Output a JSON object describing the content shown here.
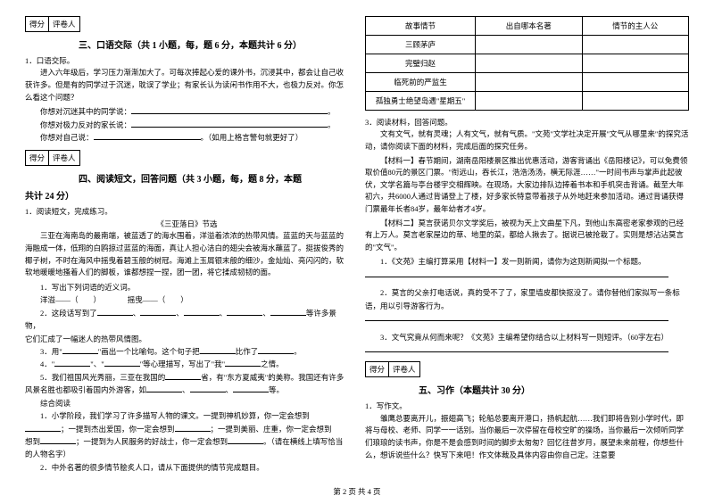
{
  "score_labels": {
    "score": "得分",
    "reviewer": "评卷人"
  },
  "sec3": {
    "title": "三、口语交际（共 1 小题，每，题 6 分，本题共计 6 分）",
    "q": "1．口语交际。",
    "intro": "进入六年级后，学习压力渐渐加大了。可每次捧起心爱的课外书，沉浸其中，都会让自己收获许多。但是有的同学过于沉迷，耽误了学业；有家长认为读闲书作用不大，也极力反对。你怎么看这个问题？",
    "l1p": "你想对沉迷其中的同学说：",
    "l2p": "你想对极力反对的家长说：",
    "l3p": "你想对自己说：",
    "l3s": "。（如用上格言警句就更好了）"
  },
  "sec4": {
    "title": "四、阅读短文，回答问题（共 3 小题，每，题 8 分，本题",
    "title2": "共计 24 分）",
    "q1": "1．阅读短文，完成练习。",
    "story_title": "《三亚落日》节选",
    "p1": "三亚在海南岛的最南端，被蓝透了的海水围着，洋溢着浓浓的热带风情。蓝蓝的天与蓝蓝的海融成一体，低翔的白鸥掠过蓝蓝的海面，真让人担心洁白的翅尖会被海水蘸蓝了。挺拔俊秀的椰子树，不时在海风中摇曳着碧玉般的树冠。海滩上玉屑银末般的细沙，金灿灿、亮闪闪的，软软地暖暖地搔着人们的脚板，谁都想捏一捏，团一团，将它揉成韧韧的面。",
    "t1": "1．写出下列词语的近义词。",
    "t1a": "洋溢——（　　）",
    "t1b": "摇曳——（　　）",
    "t2pre": "2．这段话写到了",
    "t2mid": "等许多景物，",
    "t2end": "它们汇成了一幅迷人的热带风情图。",
    "t3a": "3．用\"",
    "t3b": "\"画出一个比喻句。这个句子把",
    "t3c": "比作了",
    "t4a": "4．\"",
    "t4b": "\"、\"",
    "t4c": "\"等心理描写，写出了\"我\"",
    "t4d": "之情。",
    "t5a": "5．我们祖国风光秀丽，三亚在我国的",
    "t5b": "省，有\"东方夏威夷\"的美称。我国还有许多风景名胜也都吸引着国内外游客，如",
    "cx": "综合阅读",
    "c1": "1．小学阶段，我们学习了许多描写人物的课文。一提到神机妙算，你一定会想到",
    "c1a": "；一提到杰出爱国，你一定会想到",
    "c1b": "；一提到美丽、庄重，你一定会想到",
    "c1c": "；一提到为人民服务的好战士，你一定会想到",
    "c1d": "。（请在横线上填写恰当的人物名字）",
    "c2": "2．中外名著的很多情节脍炙人口，请从下面提供的情节完成题目。"
  },
  "table": {
    "h1": "故事情节",
    "h2": "出自哪本名著",
    "h3": "情节的主人公",
    "r1": "三顾茅庐",
    "r2": "完璧归赵",
    "r3": "临死前的严监生",
    "r4": "孤独勇士绝望岛遇\"星期五\""
  },
  "sec4b": {
    "q3": "3．阅读材料，回答问题。",
    "p1": "文有文气，就有灵魂；人有文气，就有气质。\"文苑\"文学社决定开展\"文气从哪里来\"的探究活动，请你阅读下面的材料，完成后面的探究任务。",
    "m1": "【材料一】春节期间，湖南岳阳楼景区推出优惠活动，游客背诵出《岳阳楼记》，可以免费领取价值80元的景区门票。\"衔远山，吞长江，浩浩汤汤，横无际涯……\"一时间书声与掌声此起彼伏，文学名篇与亭台楼宇交相辉映。在现场，大家边排队边捧着书本和手机突击背诵。截至大年初六，共6000人通过背诵登上了楼，好多家长特意带着孩子从外地赶来参加活动。通过背诵获得门票最年长者84岁，最年幼者才4岁。",
    "m2": "【材料二】莫言获诺贝尔文学奖后，被视为天上文曲星下凡，到他山东高密老家参观的已经有上万人。莫言老家屋边的草、地里的菜，都给人揪去了。据说已被抢栽了。实则是想沾沾莫言的\"文气\"。",
    "q3_1": "1．《文苑》主编打算采用【材料一】发一则新闻，请你为这则新闻拟一个标题。",
    "q3_2": "2．莫言的父亲打电话说，真的受不了了，家里墙皮都快抠没了。请你替他们家拟写一条标语，用以引导游客行为。",
    "q3_3": "3．文气究竟从何而来呢？《文苑》主编希望你结合以上材料写一则短评。（60字左右）"
  },
  "sec5": {
    "title": "五、习作（本题共计 30 分）",
    "q": "1．写作文。",
    "p": "雏鹰总要离开儿，振翅高飞；轮船总要离开港口，扬帆起航……我们即将告别小学时代，即将与母校、老师、同学一一话别。当你最后一次停留在母校空旷的操场，当你最后一次倾听同学们琅琅的读书声，你是不是会感到时间的脚步太匆匆？回忆往昔岁月，展望未来前程，你想些什么，想诉说些什么？快写下来吧！作文体裁及具体内容由你自己定。注意要"
  },
  "footer": "第 2 页 共 4 页"
}
